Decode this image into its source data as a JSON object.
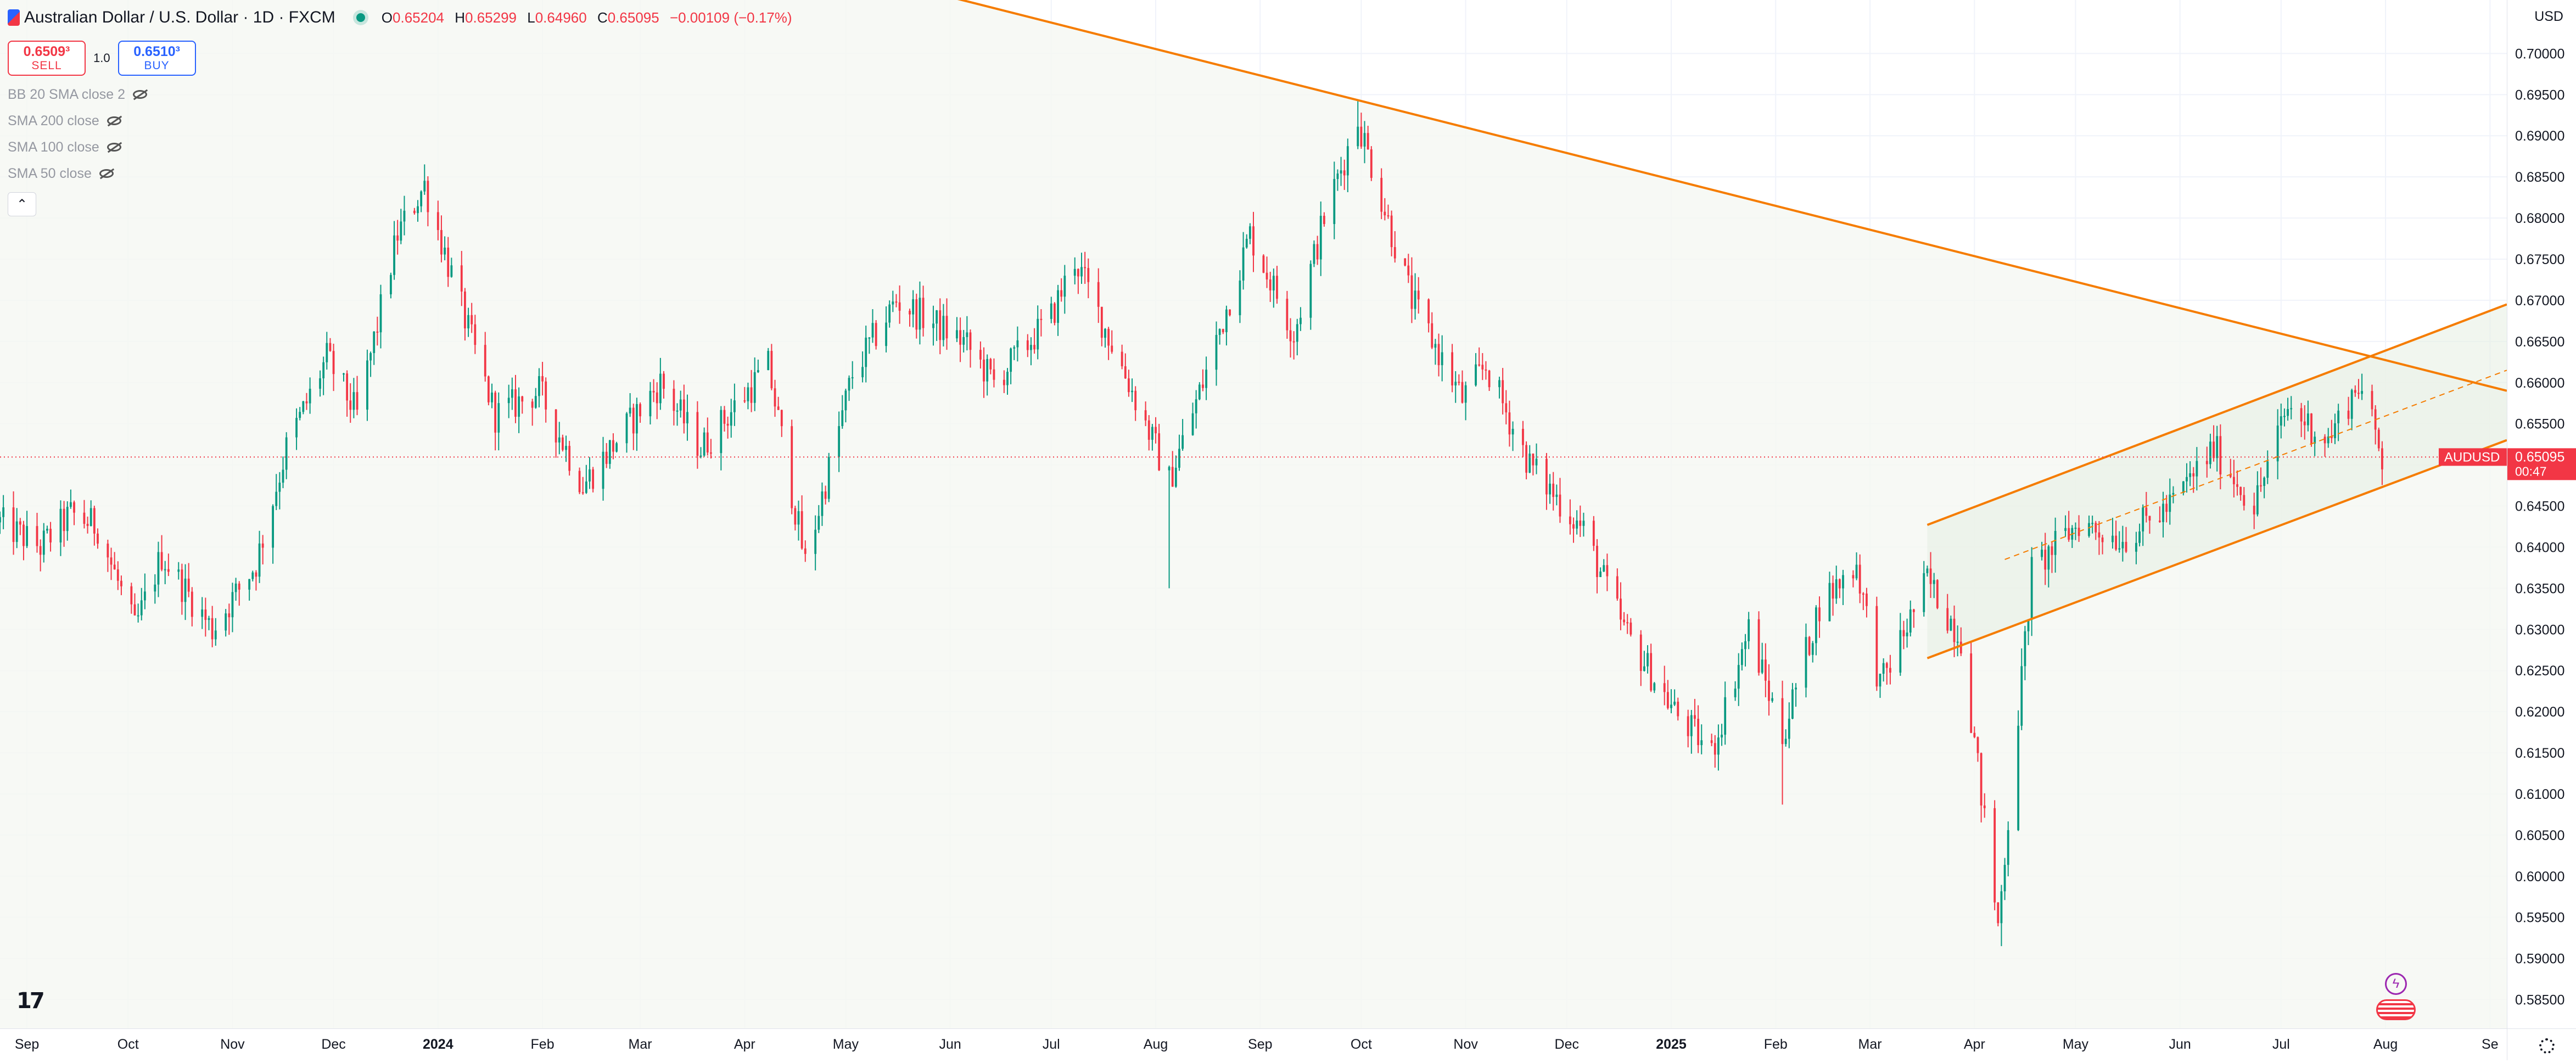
{
  "header": {
    "title": "Australian Dollar / U.S. Dollar · 1D · FXCM",
    "open_label": "O",
    "open": "0.65204",
    "high_label": "H",
    "high": "0.65299",
    "low_label": "L",
    "low": "0.64960",
    "close_label": "C",
    "close": "0.65095",
    "change": "−0.00109 (−0.17%)"
  },
  "trade": {
    "sell_price": "0.6509³",
    "sell_label": "SELL",
    "buy_price": "0.6510³",
    "buy_label": "BUY",
    "quantity": "1.0"
  },
  "indicators": [
    {
      "label": "BB 20 SMA close 2"
    },
    {
      "label": "SMA 200 close"
    },
    {
      "label": "SMA 100 close"
    },
    {
      "label": "SMA 50 close"
    }
  ],
  "collapse_icon": "chevron-up-icon",
  "currency": "USD",
  "symbol_badge": {
    "name": "AUDUSD",
    "price": "0.65095",
    "countdown": "00:47",
    "color": "#f23645"
  },
  "colors": {
    "up": "#089981",
    "down": "#f23645",
    "trendline": "#f57c00",
    "channel_fill": "#f5f7f2"
  },
  "chart_data": {
    "type": "candlestick",
    "symbol": "AUDUSD",
    "interval": "1D",
    "x_range": [
      "2023-08-24",
      "2025-09-06"
    ],
    "y_range": [
      0.5815,
      0.7065
    ],
    "price_ticks": [
      "0.70000",
      "0.69500",
      "0.69000",
      "0.68500",
      "0.68000",
      "0.67500",
      "0.67000",
      "0.66500",
      "0.66000",
      "0.65500",
      "0.65000",
      "0.64500",
      "0.64000",
      "0.63500",
      "0.63000",
      "0.62500",
      "0.62000",
      "0.61500",
      "0.61000",
      "0.60500",
      "0.60000",
      "0.59500",
      "0.59000",
      "0.58500"
    ],
    "time_ticks": [
      {
        "label": "Sep",
        "date": "2023-09-01"
      },
      {
        "label": "Oct",
        "date": "2023-10-01"
      },
      {
        "label": "Nov",
        "date": "2023-11-01"
      },
      {
        "label": "Dec",
        "date": "2023-12-01"
      },
      {
        "label": "2024",
        "date": "2024-01-01",
        "bold": true
      },
      {
        "label": "Feb",
        "date": "2024-02-01"
      },
      {
        "label": "Mar",
        "date": "2024-03-01"
      },
      {
        "label": "Apr",
        "date": "2024-04-01"
      },
      {
        "label": "May",
        "date": "2024-05-01"
      },
      {
        "label": "Jun",
        "date": "2024-06-01"
      },
      {
        "label": "Jul",
        "date": "2024-07-01"
      },
      {
        "label": "Aug",
        "date": "2024-08-01"
      },
      {
        "label": "Sep",
        "date": "2024-09-01"
      },
      {
        "label": "Oct",
        "date": "2024-10-01"
      },
      {
        "label": "Nov",
        "date": "2024-11-01"
      },
      {
        "label": "Dec",
        "date": "2024-12-01"
      },
      {
        "label": "2025",
        "date": "2025-01-01",
        "bold": true
      },
      {
        "label": "Feb",
        "date": "2025-02-01"
      },
      {
        "label": "Mar",
        "date": "2025-03-01"
      },
      {
        "label": "Apr",
        "date": "2025-04-01"
      },
      {
        "label": "May",
        "date": "2025-05-01"
      },
      {
        "label": "Jun",
        "date": "2025-06-01"
      },
      {
        "label": "Jul",
        "date": "2025-07-01"
      },
      {
        "label": "Aug",
        "date": "2025-08-01"
      },
      {
        "label": "Se",
        "date": "2025-09-01"
      }
    ],
    "price_path": [
      {
        "date": "2023-08-24",
        "close": 0.643
      },
      {
        "date": "2023-09-05",
        "close": 0.64
      },
      {
        "date": "2023-09-14",
        "close": 0.644
      },
      {
        "date": "2023-09-22",
        "close": 0.6425
      },
      {
        "date": "2023-10-03",
        "close": 0.63
      },
      {
        "date": "2023-10-11",
        "close": 0.639
      },
      {
        "date": "2023-10-26",
        "close": 0.63
      },
      {
        "date": "2023-11-08",
        "close": 0.638
      },
      {
        "date": "2023-11-17",
        "close": 0.652
      },
      {
        "date": "2023-11-29",
        "close": 0.663
      },
      {
        "date": "2023-12-08",
        "close": 0.656
      },
      {
        "date": "2023-12-20",
        "close": 0.678
      },
      {
        "date": "2023-12-28",
        "close": 0.684
      },
      {
        "date": "2024-01-08",
        "close": 0.669
      },
      {
        "date": "2024-01-18",
        "close": 0.656
      },
      {
        "date": "2024-01-31",
        "close": 0.659
      },
      {
        "date": "2024-02-13",
        "close": 0.6475
      },
      {
        "date": "2024-03-07",
        "close": 0.66
      },
      {
        "date": "2024-03-19",
        "close": 0.652
      },
      {
        "date": "2024-04-08",
        "close": 0.662
      },
      {
        "date": "2024-04-19",
        "close": 0.638
      },
      {
        "date": "2024-05-03",
        "close": 0.661
      },
      {
        "date": "2024-05-16",
        "close": 0.67
      },
      {
        "date": "2024-06-05",
        "close": 0.665
      },
      {
        "date": "2024-06-14",
        "close": 0.66
      },
      {
        "date": "2024-07-01",
        "close": 0.668
      },
      {
        "date": "2024-07-08",
        "close": 0.675
      },
      {
        "date": "2024-07-24",
        "close": 0.66
      },
      {
        "date": "2024-08-05",
        "close": 0.648
      },
      {
        "date": "2024-08-15",
        "close": 0.66
      },
      {
        "date": "2024-08-29",
        "close": 0.678
      },
      {
        "date": "2024-09-11",
        "close": 0.666
      },
      {
        "date": "2024-09-20",
        "close": 0.68
      },
      {
        "date": "2024-09-30",
        "close": 0.692
      },
      {
        "date": "2024-10-16",
        "close": 0.67
      },
      {
        "date": "2024-10-31",
        "close": 0.658
      },
      {
        "date": "2024-11-07",
        "close": 0.662
      },
      {
        "date": "2024-11-20",
        "close": 0.65
      },
      {
        "date": "2024-12-06",
        "close": 0.642
      },
      {
        "date": "2024-12-18",
        "close": 0.63
      },
      {
        "date": "2025-01-02",
        "close": 0.62
      },
      {
        "date": "2025-01-13",
        "close": 0.615
      },
      {
        "date": "2025-01-24",
        "close": 0.63
      },
      {
        "date": "2025-02-03",
        "close": 0.617
      },
      {
        "date": "2025-02-14",
        "close": 0.633
      },
      {
        "date": "2025-02-25",
        "close": 0.638
      },
      {
        "date": "2025-03-04",
        "close": 0.623
      },
      {
        "date": "2025-03-18",
        "close": 0.636
      },
      {
        "date": "2025-03-28",
        "close": 0.629
      },
      {
        "date": "2025-04-08",
        "close": 0.594
      },
      {
        "date": "2025-04-18",
        "close": 0.637
      },
      {
        "date": "2025-05-02",
        "close": 0.643
      },
      {
        "date": "2025-05-15",
        "close": 0.641
      },
      {
        "date": "2025-05-29",
        "close": 0.645
      },
      {
        "date": "2025-06-11",
        "close": 0.652
      },
      {
        "date": "2025-06-23",
        "close": 0.645
      },
      {
        "date": "2025-07-03",
        "close": 0.657
      },
      {
        "date": "2025-07-15",
        "close": 0.653
      },
      {
        "date": "2025-07-24",
        "close": 0.66
      },
      {
        "date": "2025-07-31",
        "close": 0.651
      }
    ],
    "spikes": [
      {
        "date": "2024-08-05",
        "low": 0.635
      },
      {
        "date": "2024-09-30",
        "high": 0.6942
      },
      {
        "date": "2025-02-03",
        "low": 0.6087
      },
      {
        "date": "2025-04-09",
        "low": 0.5915
      }
    ],
    "last_price": 0.65095,
    "trendlines": [
      {
        "name": "descending resistance",
        "from": {
          "date": "2024-01-02",
          "price": 0.7225
        },
        "to": {
          "date": "2025-09-06",
          "price": 0.659
        }
      },
      {
        "name": "channel upper",
        "from": {
          "date": "2025-03-18",
          "price": 0.6427
        },
        "to": {
          "date": "2025-09-06",
          "price": 0.6695
        }
      },
      {
        "name": "channel lower",
        "from": {
          "date": "2025-03-18",
          "price": 0.6265
        },
        "to": {
          "date": "2025-09-06",
          "price": 0.653
        }
      },
      {
        "name": "channel median",
        "style": "dashed",
        "from": {
          "date": "2025-04-10",
          "price": 0.6385
        },
        "to": {
          "date": "2025-09-06",
          "price": 0.6615
        }
      }
    ]
  }
}
